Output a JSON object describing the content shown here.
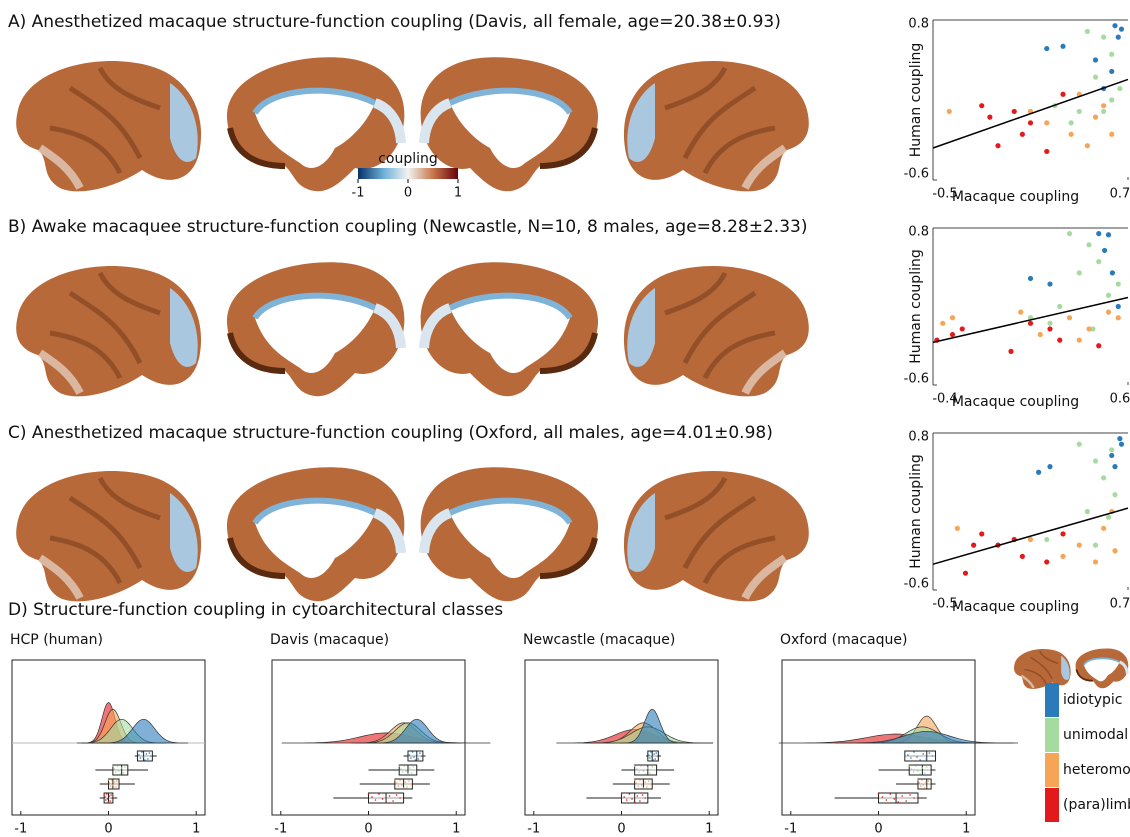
{
  "titles": [
    "A) Anesthetized macaque structure-function coupling (Davis, all female, age=20.38±0.93)",
    "B) Awake macaquee structure-function coupling (Newcastle, N=10, 8 males, age=8.28±2.33)",
    "C) Anesthetized macaque structure-function coupling (Oxford, all males, age=4.01±0.98)",
    "D) Structure-function coupling in cytoarchitectural classes"
  ],
  "colorbar": {
    "label": "coupling",
    "ticks": [
      -1,
      0,
      1
    ]
  },
  "chart_data": [
    {
      "type": "scatter",
      "xlabel": "Macaque coupling",
      "ylabel": "Human coupling",
      "xlim": [
        -0.5,
        0.7
      ],
      "ylim": [
        -0.6,
        0.8
      ],
      "xticks": [
        -0.5,
        0.7
      ],
      "yticks": [
        -0.6,
        0.8
      ],
      "fit": {
        "x": [
          -0.5,
          0.7
        ],
        "y": [
          -0.32,
          0.28
        ]
      },
      "series": [
        {
          "name": "idiotypic",
          "color": "#2b7bba",
          "x": [
            0.2,
            0.3,
            0.62,
            0.66,
            0.6,
            0.55,
            0.64,
            0.5
          ],
          "y": [
            0.55,
            0.57,
            0.75,
            0.72,
            0.35,
            0.2,
            0.65,
            0.45
          ]
        },
        {
          "name": "unimodal",
          "color": "#a6dba0",
          "x": [
            0.45,
            0.55,
            0.6,
            0.5,
            0.4,
            0.65,
            0.35,
            0.6,
            0.25,
            0.55
          ],
          "y": [
            0.7,
            0.65,
            0.5,
            0.3,
            0.0,
            0.2,
            -0.1,
            0.1,
            0.05,
            0.0
          ]
        },
        {
          "name": "heteromodal",
          "color": "#f6a556",
          "x": [
            -0.4,
            0.4,
            0.5,
            0.6,
            0.2,
            0.45,
            0.55,
            0.1,
            0.35
          ],
          "y": [
            0.0,
            0.15,
            -0.05,
            -0.2,
            -0.1,
            -0.3,
            0.05,
            0.0,
            -0.2
          ]
        },
        {
          "name": "(para)limbic",
          "color": "#e31a1c",
          "x": [
            -0.1,
            0.0,
            -0.2,
            0.1,
            0.3,
            0.05,
            -0.15,
            0.2
          ],
          "y": [
            -0.3,
            0.0,
            0.05,
            -0.1,
            0.15,
            -0.2,
            -0.05,
            -0.35
          ]
        }
      ]
    },
    {
      "type": "scatter",
      "xlabel": "Macaque coupling",
      "ylabel": "Human coupling",
      "xlim": [
        -0.4,
        0.6
      ],
      "ylim": [
        -0.6,
        0.8
      ],
      "xticks": [
        -0.4,
        0.6
      ],
      "yticks": [
        -0.6,
        0.8
      ],
      "fit": {
        "x": [
          -0.4,
          0.6
        ],
        "y": [
          -0.22,
          0.18
        ]
      },
      "series": [
        {
          "name": "idiotypic",
          "color": "#2b7bba",
          "x": [
            0.1,
            0.2,
            0.45,
            0.5,
            0.48,
            0.55,
            0.52
          ],
          "y": [
            0.35,
            0.3,
            0.75,
            0.74,
            0.6,
            0.1,
            0.4
          ]
        },
        {
          "name": "unimodal",
          "color": "#a6dba0",
          "x": [
            0.3,
            0.4,
            0.45,
            0.35,
            0.25,
            0.5,
            0.2,
            0.55,
            0.1,
            0.42
          ],
          "y": [
            0.75,
            0.65,
            0.5,
            0.4,
            0.1,
            0.2,
            -0.05,
            0.3,
            0.0,
            -0.1
          ]
        },
        {
          "name": "heteromodal",
          "color": "#f6a556",
          "x": [
            -0.35,
            -0.3,
            0.3,
            0.4,
            0.5,
            0.15,
            0.35,
            0.05,
            0.55
          ],
          "y": [
            -0.05,
            0.0,
            0.0,
            -0.1,
            0.05,
            -0.15,
            -0.2,
            0.05,
            0.0
          ]
        },
        {
          "name": "(para)limbic",
          "color": "#e31a1c",
          "x": [
            -0.38,
            -0.3,
            -0.25,
            0.0,
            0.1,
            0.25,
            0.45,
            0.2
          ],
          "y": [
            -0.2,
            -0.15,
            -0.1,
            -0.3,
            -0.05,
            -0.2,
            -0.25,
            -0.1
          ]
        }
      ]
    },
    {
      "type": "scatter",
      "xlabel": "Macaque coupling",
      "ylabel": "Human coupling",
      "xlim": [
        -0.5,
        0.7
      ],
      "ylim": [
        -0.6,
        0.8
      ],
      "xticks": [
        -0.5,
        0.7
      ],
      "yticks": [
        -0.6,
        0.8
      ],
      "fit": {
        "x": [
          -0.5,
          0.7
        ],
        "y": [
          -0.37,
          0.13
        ]
      },
      "series": [
        {
          "name": "idiotypic",
          "color": "#2b7bba",
          "x": [
            0.15,
            0.22,
            0.65,
            0.66,
            0.6,
            0.62
          ],
          "y": [
            0.45,
            0.5,
            0.75,
            0.7,
            0.6,
            0.5
          ]
        },
        {
          "name": "unimodal",
          "color": "#a6dba0",
          "x": [
            0.4,
            0.5,
            0.6,
            0.55,
            0.45,
            0.62,
            0.3,
            0.58,
            0.2,
            0.5
          ],
          "y": [
            0.7,
            0.55,
            0.65,
            0.4,
            0.1,
            0.25,
            -0.1,
            0.05,
            -0.15,
            -0.2
          ]
        },
        {
          "name": "heteromodal",
          "color": "#f6a556",
          "x": [
            -0.35,
            -0.2,
            0.4,
            0.55,
            0.6,
            0.3,
            0.5,
            0.1,
            0.62
          ],
          "y": [
            -0.05,
            -0.1,
            -0.2,
            -0.05,
            0.1,
            -0.3,
            -0.35,
            -0.15,
            -0.25
          ]
        },
        {
          "name": "(para)limbic",
          "color": "#e31a1c",
          "x": [
            -0.1,
            0.0,
            -0.2,
            -0.3,
            0.3,
            0.05,
            -0.25,
            0.2
          ],
          "y": [
            -0.2,
            -0.15,
            -0.1,
            -0.45,
            -0.1,
            -0.3,
            -0.2,
            -0.35
          ]
        }
      ]
    },
    {
      "type": "box",
      "title": "HCP (human)",
      "xlim": [
        -1.1,
        1.1
      ],
      "xticks": [
        -1,
        0,
        1
      ],
      "series": [
        {
          "name": "idiotypic",
          "color": "#2b7bba",
          "min": 0.3,
          "q1": 0.33,
          "median": 0.4,
          "q3": 0.5,
          "max": 0.55
        },
        {
          "name": "unimodal",
          "color": "#a6dba0",
          "min": -0.15,
          "q1": 0.05,
          "median": 0.15,
          "q3": 0.22,
          "max": 0.45
        },
        {
          "name": "heteromodal",
          "color": "#f6a556",
          "min": -0.1,
          "q1": 0.0,
          "median": 0.05,
          "q3": 0.12,
          "max": 0.3
        },
        {
          "name": "(para)limbic",
          "color": "#e31a1c",
          "min": -0.1,
          "q1": -0.05,
          "median": 0.0,
          "q3": 0.05,
          "max": 0.1
        }
      ]
    },
    {
      "type": "box",
      "title": "Davis (macaque)",
      "xlim": [
        -1.1,
        1.1
      ],
      "xticks": [
        -1,
        0,
        1
      ],
      "series": [
        {
          "name": "idiotypic",
          "color": "#2b7bba",
          "min": 0.4,
          "q1": 0.45,
          "median": 0.55,
          "q3": 0.62,
          "max": 0.65
        },
        {
          "name": "unimodal",
          "color": "#a6dba0",
          "min": 0.0,
          "q1": 0.35,
          "median": 0.45,
          "q3": 0.55,
          "max": 0.75
        },
        {
          "name": "heteromodal",
          "color": "#f6a556",
          "min": -0.1,
          "q1": 0.3,
          "median": 0.4,
          "q3": 0.5,
          "max": 0.7
        },
        {
          "name": "(para)limbic",
          "color": "#e31a1c",
          "min": -0.4,
          "q1": 0.0,
          "median": 0.2,
          "q3": 0.4,
          "max": 0.5
        }
      ]
    },
    {
      "type": "box",
      "title": "Newcastle (macaque)",
      "xlim": [
        -1.1,
        1.1
      ],
      "xticks": [
        -1,
        0,
        1
      ],
      "series": [
        {
          "name": "idiotypic",
          "color": "#2b7bba",
          "min": 0.28,
          "q1": 0.3,
          "median": 0.35,
          "q3": 0.42,
          "max": 0.45
        },
        {
          "name": "unimodal",
          "color": "#a6dba0",
          "min": 0.0,
          "q1": 0.15,
          "median": 0.3,
          "q3": 0.4,
          "max": 0.6
        },
        {
          "name": "heteromodal",
          "color": "#f6a556",
          "min": -0.1,
          "q1": 0.15,
          "median": 0.25,
          "q3": 0.35,
          "max": 0.55
        },
        {
          "name": "(para)limbic",
          "color": "#e31a1c",
          "min": -0.4,
          "q1": 0.0,
          "median": 0.15,
          "q3": 0.3,
          "max": 0.45
        }
      ]
    },
    {
      "type": "box",
      "title": "Oxford (macaque)",
      "xlim": [
        -1.1,
        1.1
      ],
      "xticks": [
        -1,
        0,
        1
      ],
      "series": [
        {
          "name": "idiotypic",
          "color": "#2b7bba",
          "min": 0.3,
          "q1": 0.3,
          "median": 0.55,
          "q3": 0.65,
          "max": 0.65
        },
        {
          "name": "unimodal",
          "color": "#a6dba0",
          "min": 0.0,
          "q1": 0.35,
          "median": 0.5,
          "q3": 0.6,
          "max": 0.65
        },
        {
          "name": "heteromodal",
          "color": "#f6a556",
          "min": 0.2,
          "q1": 0.45,
          "median": 0.55,
          "q3": 0.6,
          "max": 0.65
        },
        {
          "name": "(para)limbic",
          "color": "#e31a1c",
          "min": -0.5,
          "q1": 0.0,
          "median": 0.2,
          "q3": 0.45,
          "max": 0.55
        }
      ]
    }
  ]
}
